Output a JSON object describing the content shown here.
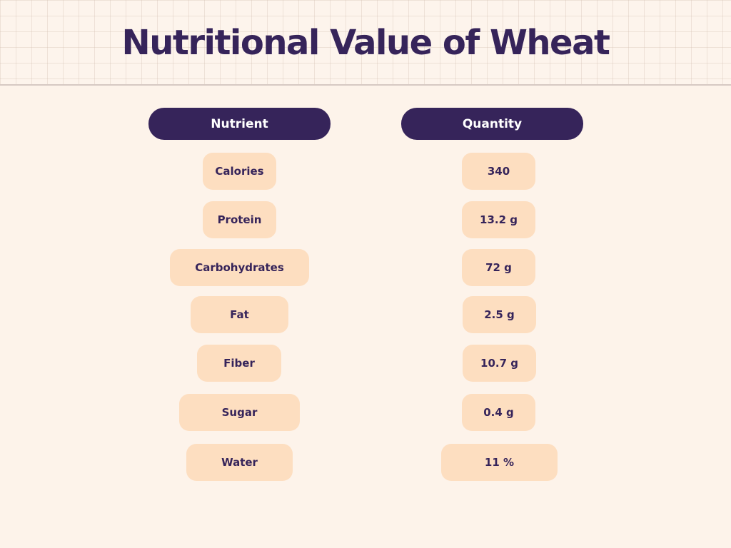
{
  "title": "Nutritional Value of Wheat",
  "headers": {
    "nutrient": "Nutrient",
    "quantity": "Quantity"
  },
  "rows": [
    {
      "nutrient": "Calories",
      "quantity": "340"
    },
    {
      "nutrient": "Protein",
      "quantity": "13.2 g"
    },
    {
      "nutrient": "Carbohydrates",
      "quantity": "72 g"
    },
    {
      "nutrient": "Fat",
      "quantity": "2.5 g"
    },
    {
      "nutrient": "Fiber",
      "quantity": "10.7 g"
    },
    {
      "nutrient": "Sugar",
      "quantity": "0.4 g"
    },
    {
      "nutrient": "Water",
      "quantity": "11 %"
    }
  ],
  "colors": {
    "accent": "#36245a",
    "pill": "#fddec0",
    "background": "#fdf3ea"
  }
}
